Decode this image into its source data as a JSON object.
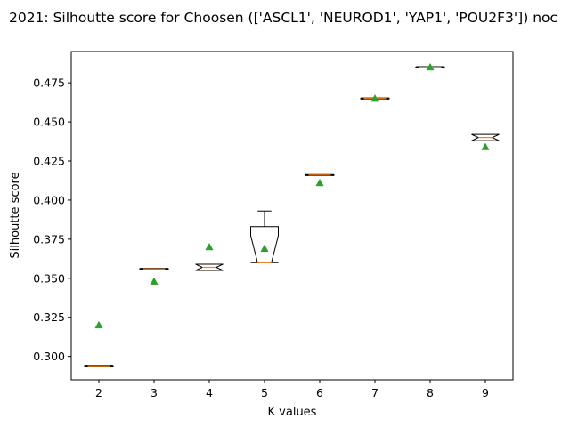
{
  "chart_data": {
    "type": "box",
    "title": "2021: Silhoutte score for Choosen (['ASCL1', 'NEUROD1', 'YAP1', 'POU2F3']) noc",
    "xlabel": "K values",
    "ylabel": "Silhoutte score",
    "categories": [
      "2",
      "3",
      "4",
      "5",
      "6",
      "7",
      "8",
      "9"
    ],
    "ylim": [
      0.285,
      0.495
    ],
    "yticks": [
      "0.300",
      "0.325",
      "0.350",
      "0.375",
      "0.400",
      "0.425",
      "0.450",
      "0.475"
    ],
    "notched": true,
    "show_means": true,
    "grid": false,
    "colors": {
      "box": "#000000",
      "median": "#ff7f0e",
      "mean": "#2ca02c"
    },
    "boxes": [
      {
        "k": 2,
        "min": 0.294,
        "q1": 0.294,
        "median": 0.294,
        "q3": 0.294,
        "max": 0.294,
        "mean": 0.32
      },
      {
        "k": 3,
        "min": 0.356,
        "q1": 0.356,
        "median": 0.356,
        "q3": 0.356,
        "max": 0.356,
        "mean": 0.348
      },
      {
        "k": 4,
        "min": 0.355,
        "q1": 0.355,
        "median": 0.357,
        "q3": 0.359,
        "max": 0.359,
        "mean": 0.37
      },
      {
        "k": 5,
        "min": 0.36,
        "q1": 0.36,
        "median": 0.36,
        "q3": 0.383,
        "max": 0.393,
        "mean": 0.369
      },
      {
        "k": 6,
        "min": 0.416,
        "q1": 0.416,
        "median": 0.416,
        "q3": 0.416,
        "max": 0.416,
        "mean": 0.411
      },
      {
        "k": 7,
        "min": 0.465,
        "q1": 0.465,
        "median": 0.465,
        "q3": 0.465,
        "max": 0.465,
        "mean": 0.465
      },
      {
        "k": 8,
        "min": 0.485,
        "q1": 0.485,
        "median": 0.485,
        "q3": 0.485,
        "max": 0.485,
        "mean": 0.485
      },
      {
        "k": 9,
        "min": 0.438,
        "q1": 0.438,
        "median": 0.44,
        "q3": 0.442,
        "max": 0.442,
        "mean": 0.434
      }
    ]
  }
}
